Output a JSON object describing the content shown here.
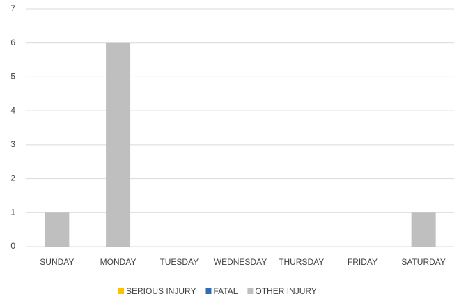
{
  "chart_data": {
    "type": "stacked_bar",
    "categories": [
      "SUNDAY",
      "MONDAY",
      "TUESDAY",
      "WEDNESDAY",
      "THURSDAY",
      "FRIDAY",
      "SATURDAY"
    ],
    "series": [
      {
        "name": "SERIOUS INJURY",
        "color": "#ffc000",
        "values": [
          0,
          0,
          0,
          0,
          0,
          0,
          0
        ]
      },
      {
        "name": "FATAL",
        "color": "#2e6db4",
        "values": [
          0,
          0,
          0,
          0,
          0,
          0,
          0
        ]
      },
      {
        "name": "OTHER INJURY",
        "color": "#bfbfbf",
        "values": [
          1,
          6,
          0,
          0,
          0,
          0,
          1
        ]
      }
    ],
    "ylim": [
      0,
      7
    ],
    "yticks": [
      0,
      1,
      2,
      3,
      4,
      5,
      6,
      7
    ],
    "grid": true,
    "legend": "bottom"
  }
}
